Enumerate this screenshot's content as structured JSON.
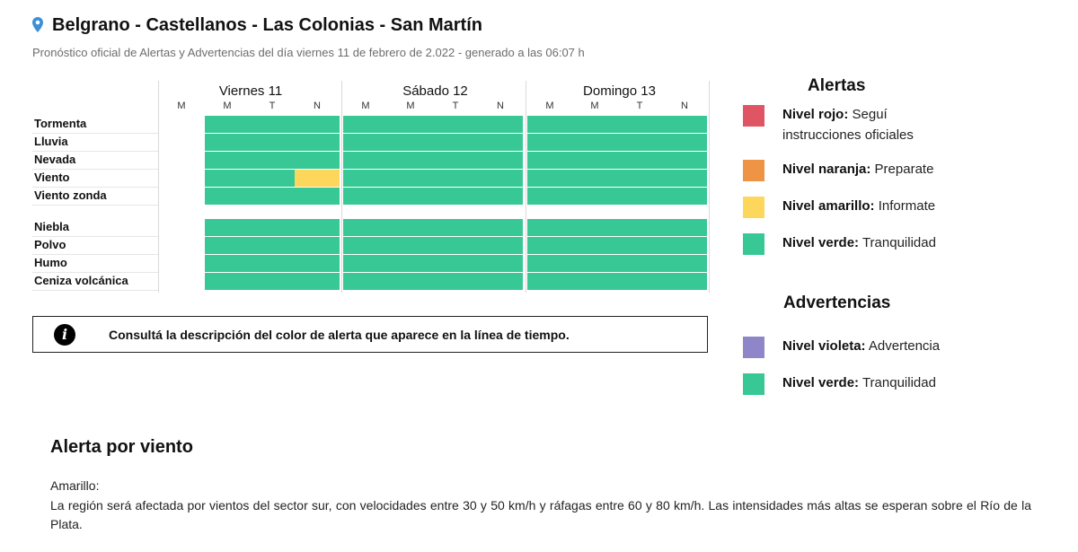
{
  "header": {
    "title": "Belgrano - Castellanos - Las Colonias - San Martín",
    "subtitle": "Pronóstico oficial de Alertas y Advertencias del día viernes 11 de febrero de 2.022 - generado a las 06:07 h",
    "pin_icon": "map-pin-icon"
  },
  "timeline": {
    "days": [
      {
        "label": "Viernes 11"
      },
      {
        "label": "Sábado 12"
      },
      {
        "label": "Domingo 13"
      }
    ],
    "periods": [
      "M",
      "M",
      "T",
      "N",
      "M",
      "M",
      "T",
      "N",
      "M",
      "M",
      "T",
      "N"
    ],
    "first_period": "M",
    "rows_group1": [
      {
        "label": "Tormenta",
        "levels": [
          "green",
          "green",
          "green",
          "green",
          "green",
          "green",
          "green",
          "green",
          "green",
          "green",
          "green"
        ]
      },
      {
        "label": "Lluvia",
        "levels": [
          "green",
          "green",
          "green",
          "green",
          "green",
          "green",
          "green",
          "green",
          "green",
          "green",
          "green"
        ]
      },
      {
        "label": "Nevada",
        "levels": [
          "green",
          "green",
          "green",
          "green",
          "green",
          "green",
          "green",
          "green",
          "green",
          "green",
          "green"
        ]
      },
      {
        "label": "Viento",
        "levels": [
          "green",
          "green",
          "yellow",
          "green",
          "green",
          "green",
          "green",
          "green",
          "green",
          "green",
          "green"
        ]
      },
      {
        "label": "Viento zonda",
        "levels": [
          "green",
          "green",
          "green",
          "green",
          "green",
          "green",
          "green",
          "green",
          "green",
          "green",
          "green"
        ]
      }
    ],
    "rows_group2": [
      {
        "label": "Niebla",
        "levels": [
          "green",
          "green",
          "green",
          "green",
          "green",
          "green",
          "green",
          "green",
          "green",
          "green",
          "green"
        ]
      },
      {
        "label": "Polvo",
        "levels": [
          "green",
          "green",
          "green",
          "green",
          "green",
          "green",
          "green",
          "green",
          "green",
          "green",
          "green"
        ]
      },
      {
        "label": "Humo",
        "levels": [
          "green",
          "green",
          "green",
          "green",
          "green",
          "green",
          "green",
          "green",
          "green",
          "green",
          "green"
        ]
      },
      {
        "label": "Ceniza volcánica",
        "levels": [
          "green",
          "green",
          "green",
          "green",
          "green",
          "green",
          "green",
          "green",
          "green",
          "green",
          "green"
        ]
      }
    ]
  },
  "colors": {
    "red": "#e05563",
    "orange": "#ef9444",
    "yellow": "#fdd65c",
    "green": "#38c896",
    "violet": "#8e86c9"
  },
  "info": {
    "icon": "info-icon",
    "icon_glyph": "i",
    "text": "Consultá la descripción del color de alerta que aparece en la línea de tiempo."
  },
  "legend": {
    "alertas_title": "Alertas",
    "alertas": [
      {
        "level": "Nivel rojo:",
        "desc": "Seguí instrucciones oficiales",
        "color": "red"
      },
      {
        "level": "Nivel naranja:",
        "desc": "Preparate",
        "color": "orange"
      },
      {
        "level": "Nivel amarillo:",
        "desc": "Informate",
        "color": "yellow"
      },
      {
        "level": "Nivel verde:",
        "desc": "Tranquilidad",
        "color": "green"
      }
    ],
    "advertencias_title": "Advertencias",
    "advertencias": [
      {
        "level": "Nivel violeta:",
        "desc": "Advertencia",
        "color": "violet"
      },
      {
        "level": "Nivel verde:",
        "desc": "Tranquilidad",
        "color": "green"
      }
    ]
  },
  "alert_section": {
    "title": "Alerta por viento",
    "level": "Amarillo:",
    "description": "La región será afectada por vientos del sector sur, con velocidades entre 30 y 50 km/h y ráfagas entre 60 y 80 km/h. Las intensidades más altas se esperan sobre el Río de la Plata."
  }
}
